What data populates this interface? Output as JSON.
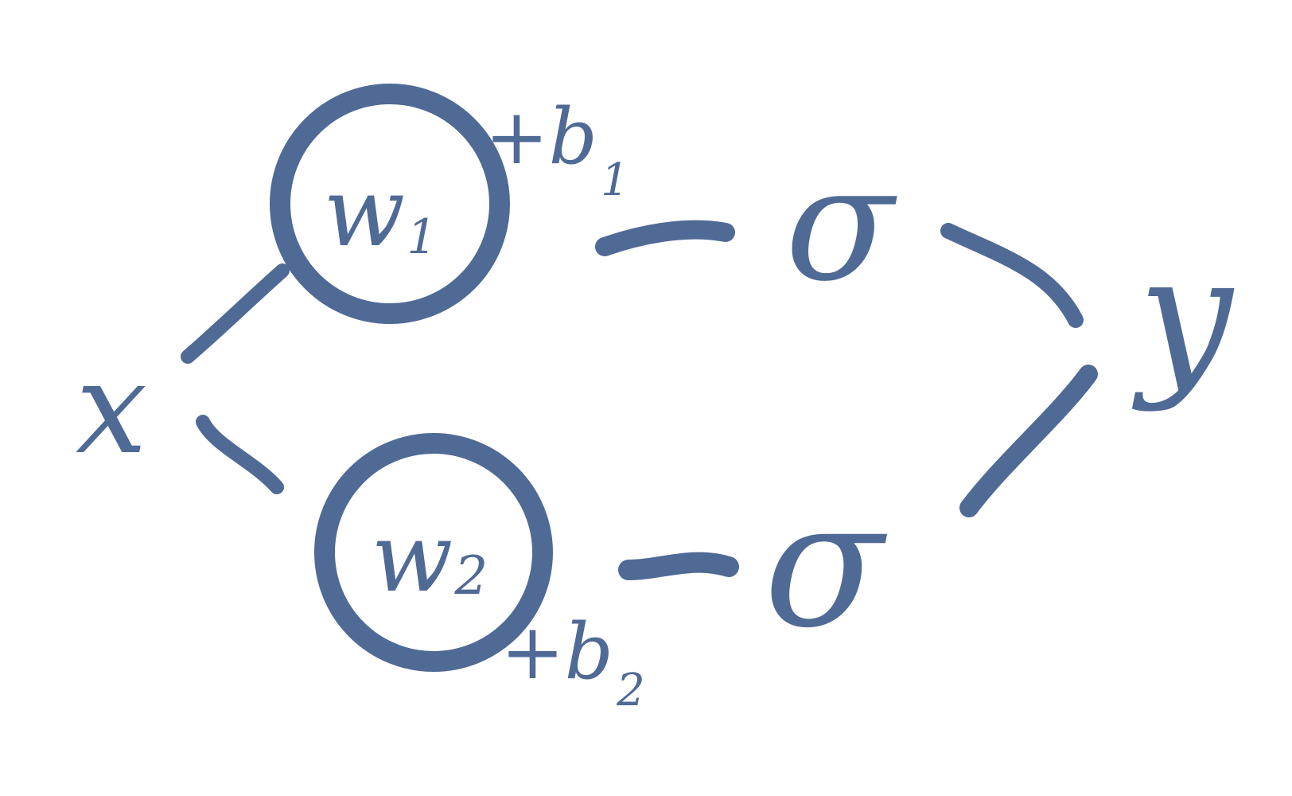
{
  "diagram": {
    "ink_color": "#506a96",
    "background_color": "#ffffff",
    "input": {
      "symbol": "x"
    },
    "neurons": [
      {
        "weight": "w",
        "weight_sub": "1",
        "bias": "+b",
        "bias_sub": "1",
        "activation": "σ"
      },
      {
        "weight": "w",
        "weight_sub": "2",
        "bias": "+b",
        "bias_sub": "2",
        "activation": "σ"
      }
    ],
    "output": {
      "symbol": "y"
    }
  }
}
